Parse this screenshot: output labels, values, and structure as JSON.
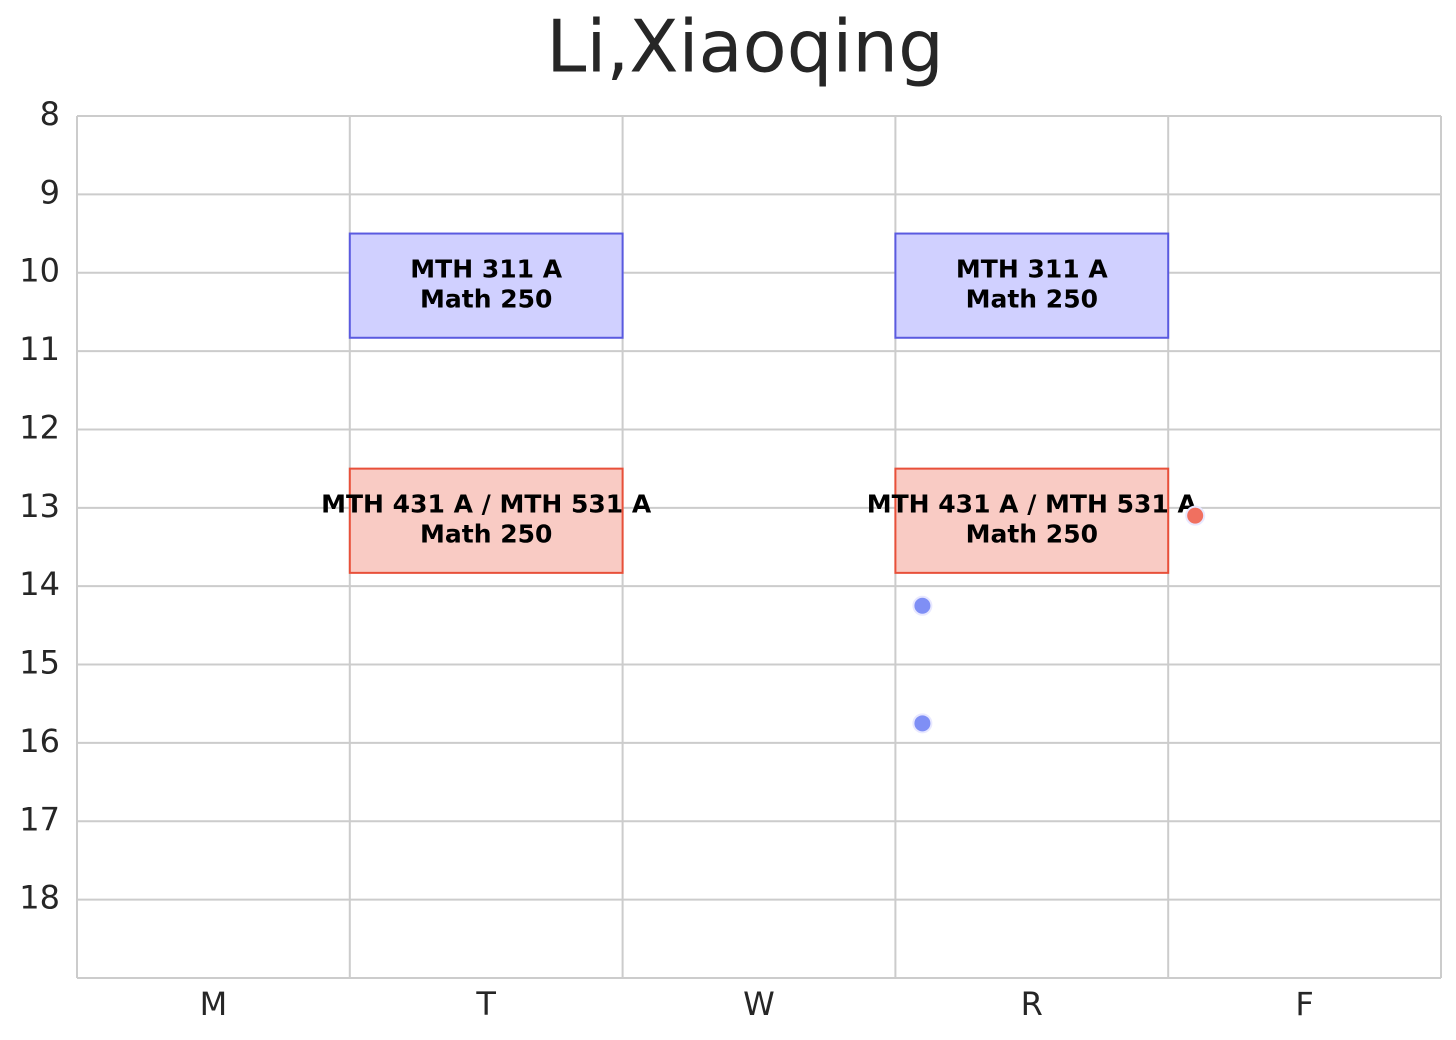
{
  "chart_data": {
    "type": "schedule",
    "title": "Li,Xiaoqing",
    "categories": [
      "M",
      "T",
      "W",
      "R",
      "F"
    ],
    "ylim": [
      8,
      19
    ],
    "y_inverted": true,
    "yticks": [
      8,
      9,
      10,
      11,
      12,
      13,
      14,
      15,
      16,
      17,
      18
    ],
    "grid": true,
    "events": [
      {
        "day": "T",
        "start": 9.5,
        "end": 10.83,
        "course": "MTH 311 A",
        "room": "Math 250",
        "fill": "#d0d0ff",
        "color": "#5a5ae0"
      },
      {
        "day": "R",
        "start": 9.5,
        "end": 10.83,
        "course": "MTH 311 A",
        "room": "Math 250",
        "fill": "#d0d0ff",
        "color": "#5a5ae0"
      },
      {
        "day": "T",
        "start": 12.5,
        "end": 13.83,
        "course": "MTH 431 A / MTH 531 A",
        "room": "Math 250",
        "fill": "#f9cbc4",
        "color": "#e8503a"
      },
      {
        "day": "R",
        "start": 12.5,
        "end": 13.83,
        "course": "MTH 431 A / MTH 531 A",
        "room": "Math 250",
        "fill": "#f9cbc4",
        "color": "#e8503a"
      }
    ],
    "markers": [
      {
        "day": "R",
        "time": 14.25,
        "color": "#7f8ff5"
      },
      {
        "day": "R",
        "time": 15.75,
        "color": "#7f8ff5"
      },
      {
        "day": "F",
        "time": 13.1,
        "color": "#f07060"
      }
    ]
  }
}
